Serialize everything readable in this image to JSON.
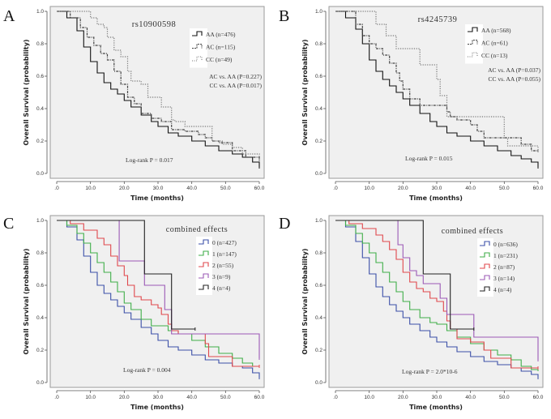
{
  "chart_data": [
    {
      "panel": "A",
      "type": "line",
      "subtype": "kaplan-meier",
      "title": "rs10900598",
      "xlabel": "Time (months)",
      "ylabel": "Overall Survival (probability)",
      "xlim": [
        0,
        60
      ],
      "ylim": [
        0,
        1
      ],
      "xticks": [
        ".0",
        "10.0",
        "20.0",
        "30.0",
        "40.0",
        "50.0",
        "60.0"
      ],
      "yticks": [
        "0.0",
        "0.2",
        "0.4",
        "0.6",
        "0.8",
        "1.0"
      ],
      "grid": false,
      "legend_position": "top-right",
      "annotations": [
        "AC vs. AA (P=0.227)",
        "CC vs. AA (P=0.017)"
      ],
      "logrank": "Log-rank P = 0.017",
      "series": [
        {
          "name": "AA (n=476)",
          "color": "#111111",
          "style": "solid",
          "x": [
            0,
            3,
            6,
            8,
            10,
            12,
            14,
            16,
            18,
            20,
            22,
            25,
            28,
            30,
            33,
            36,
            40,
            44,
            48,
            52,
            55,
            58,
            60
          ],
          "y": [
            1.0,
            0.96,
            0.88,
            0.78,
            0.69,
            0.62,
            0.56,
            0.52,
            0.49,
            0.45,
            0.41,
            0.36,
            0.32,
            0.29,
            0.25,
            0.23,
            0.2,
            0.17,
            0.14,
            0.12,
            0.1,
            0.07,
            0.04
          ]
        },
        {
          "name": "AC (n=115)",
          "color": "#444444",
          "style": "dash-dot",
          "x": [
            0,
            4,
            7,
            9,
            11,
            13,
            15,
            17,
            19,
            21,
            23,
            25,
            28,
            31,
            34,
            38,
            42,
            44,
            46,
            48,
            52,
            56,
            60
          ],
          "y": [
            1.0,
            0.96,
            0.9,
            0.84,
            0.79,
            0.74,
            0.7,
            0.63,
            0.55,
            0.47,
            0.43,
            0.37,
            0.34,
            0.32,
            0.27,
            0.26,
            0.24,
            0.22,
            0.2,
            0.19,
            0.14,
            0.1,
            0.09
          ]
        },
        {
          "name": "CC (n=49)",
          "color": "#777777",
          "style": "dotted",
          "x": [
            0,
            7,
            10,
            12,
            14,
            15,
            17,
            19,
            21,
            22,
            25,
            27,
            31,
            34,
            35,
            38,
            44,
            46,
            49,
            52,
            55,
            58,
            60
          ],
          "y": [
            1.0,
            1.0,
            0.96,
            0.92,
            0.9,
            0.84,
            0.76,
            0.72,
            0.63,
            0.57,
            0.55,
            0.47,
            0.41,
            0.33,
            0.32,
            0.29,
            0.29,
            0.2,
            0.18,
            0.16,
            0.12,
            0.12,
            0.08
          ]
        }
      ]
    },
    {
      "panel": "B",
      "type": "line",
      "subtype": "kaplan-meier",
      "title": "rs4245739",
      "xlabel": "Time (months)",
      "ylabel": "Overall Survival (probability)",
      "xlim": [
        0,
        60
      ],
      "ylim": [
        0,
        1
      ],
      "xticks": [
        ".0",
        "10.0",
        "20.0",
        "30.0",
        "40.0",
        "50.0",
        "60.0"
      ],
      "yticks": [
        "0.0",
        "0.2",
        "0.4",
        "0.6",
        "0.8",
        "1.0"
      ],
      "grid": false,
      "legend_position": "top-right",
      "annotations": [
        "AC vs. AA (P=0.037)",
        "CC vs. AA (P=0.055)"
      ],
      "logrank": "Log-rank P = 0.015",
      "series": [
        {
          "name": "AA (n=568)",
          "color": "#111111",
          "style": "solid",
          "x": [
            0,
            3,
            6,
            8,
            10,
            12,
            14,
            16,
            18,
            20,
            22,
            25,
            28,
            30,
            33,
            36,
            40,
            44,
            48,
            52,
            55,
            58,
            60
          ],
          "y": [
            1.0,
            0.96,
            0.89,
            0.8,
            0.7,
            0.63,
            0.58,
            0.54,
            0.5,
            0.46,
            0.42,
            0.37,
            0.32,
            0.29,
            0.25,
            0.23,
            0.2,
            0.17,
            0.14,
            0.11,
            0.09,
            0.07,
            0.04
          ]
        },
        {
          "name": "AC (n=61)",
          "color": "#444444",
          "style": "dash-dot",
          "x": [
            0,
            6,
            8,
            10,
            12,
            14,
            16,
            18,
            19,
            20,
            22,
            25,
            30,
            33,
            34,
            36,
            40,
            42,
            44,
            50,
            55,
            58,
            60
          ],
          "y": [
            1.0,
            0.92,
            0.85,
            0.8,
            0.77,
            0.73,
            0.68,
            0.62,
            0.57,
            0.52,
            0.46,
            0.42,
            0.42,
            0.38,
            0.35,
            0.33,
            0.3,
            0.26,
            0.22,
            0.22,
            0.18,
            0.14,
            0.14
          ]
        },
        {
          "name": "CC (n=13)",
          "color": "#777777",
          "style": "dotted",
          "x": [
            0,
            12,
            15,
            18,
            21,
            25,
            30,
            31,
            33,
            40,
            50,
            51,
            53,
            60
          ],
          "y": [
            1.0,
            0.92,
            0.85,
            0.77,
            0.77,
            0.67,
            0.58,
            0.48,
            0.35,
            0.35,
            0.22,
            0.17,
            0.17,
            0.14
          ]
        }
      ]
    },
    {
      "panel": "C",
      "type": "line",
      "subtype": "kaplan-meier",
      "title": "combined effects",
      "xlabel": "Time (months)",
      "ylabel": "Overall Survival (probability)",
      "xlim": [
        0,
        60
      ],
      "ylim": [
        0,
        1
      ],
      "xticks": [
        ".0",
        "10.0",
        "20.0",
        "30.0",
        "40.0",
        "50.0",
        "60.0"
      ],
      "yticks": [
        "0.0",
        "0.2",
        "0.4",
        "0.6",
        "0.8",
        "1.0"
      ],
      "grid": false,
      "legend_position": "top-right",
      "annotations": [],
      "logrank": "Log-rank P = 0.004",
      "series": [
        {
          "name": "0 (n=427)",
          "color": "#3b4fa8",
          "style": "solid",
          "x": [
            0,
            3,
            6,
            8,
            10,
            12,
            14,
            16,
            18,
            20,
            22,
            25,
            28,
            30,
            33,
            36,
            40,
            44,
            48,
            52,
            55,
            58,
            60
          ],
          "y": [
            1.0,
            0.96,
            0.88,
            0.78,
            0.68,
            0.6,
            0.55,
            0.51,
            0.47,
            0.43,
            0.39,
            0.34,
            0.3,
            0.26,
            0.22,
            0.2,
            0.17,
            0.14,
            0.12,
            0.1,
            0.09,
            0.06,
            0.03
          ]
        },
        {
          "name": "1 (n=147)",
          "color": "#3fae49",
          "style": "solid",
          "x": [
            0,
            3,
            6,
            8,
            10,
            12,
            14,
            16,
            18,
            20,
            22,
            25,
            28,
            30,
            33,
            36,
            40,
            44,
            48,
            52,
            55,
            58,
            60
          ],
          "y": [
            1.0,
            0.97,
            0.92,
            0.86,
            0.8,
            0.74,
            0.68,
            0.62,
            0.56,
            0.49,
            0.45,
            0.39,
            0.35,
            0.35,
            0.32,
            0.3,
            0.26,
            0.22,
            0.18,
            0.15,
            0.12,
            0.1,
            0.1
          ]
        },
        {
          "name": "2 (n=55)",
          "color": "#e0474c",
          "style": "solid",
          "x": [
            0,
            4,
            8,
            12,
            14,
            16,
            18,
            20,
            21,
            23,
            25,
            28,
            30,
            31,
            33,
            34,
            36,
            40,
            44,
            45,
            50,
            52,
            60
          ],
          "y": [
            1.0,
            0.98,
            0.94,
            0.89,
            0.85,
            0.78,
            0.72,
            0.66,
            0.6,
            0.53,
            0.51,
            0.48,
            0.46,
            0.42,
            0.36,
            0.32,
            0.3,
            0.3,
            0.24,
            0.16,
            0.16,
            0.1,
            0.1
          ]
        },
        {
          "name": "3 (n=9)",
          "color": "#9b59b6",
          "style": "solid",
          "x": [
            0,
            18,
            18.5,
            25,
            26,
            31,
            32,
            34,
            59,
            60
          ],
          "y": [
            1.0,
            1.0,
            0.75,
            0.75,
            0.6,
            0.6,
            0.45,
            0.3,
            0.3,
            0.15
          ]
        },
        {
          "name": "4 (n=4)",
          "color": "#222222",
          "style": "solid",
          "x": [
            0,
            26,
            26,
            34,
            34,
            41
          ],
          "y": [
            1.0,
            1.0,
            0.67,
            0.67,
            0.33,
            0.33
          ]
        }
      ]
    },
    {
      "panel": "D",
      "type": "line",
      "subtype": "kaplan-meier",
      "title": "combined effects",
      "xlabel": "Time (months)",
      "ylabel": "Overall Survival (probability)",
      "xlim": [
        0,
        60
      ],
      "ylim": [
        0,
        1
      ],
      "xticks": [
        ".0",
        "10.0",
        "20.0",
        "30.0",
        "40.0",
        "50.0",
        "60.0"
      ],
      "yticks": [
        "0.0",
        "0.2",
        "0.4",
        "0.6",
        "0.8",
        "1.0"
      ],
      "grid": false,
      "legend_position": "top-right",
      "annotations": [],
      "logrank": "Log-rank P = 2.0*10-6",
      "series": [
        {
          "name": "0 (n=636)",
          "color": "#3b4fa8",
          "style": "solid",
          "x": [
            0,
            3,
            6,
            8,
            10,
            12,
            14,
            16,
            18,
            20,
            22,
            25,
            28,
            30,
            33,
            36,
            40,
            44,
            48,
            52,
            55,
            58,
            60
          ],
          "y": [
            1.0,
            0.96,
            0.87,
            0.77,
            0.67,
            0.59,
            0.53,
            0.48,
            0.44,
            0.4,
            0.36,
            0.32,
            0.28,
            0.25,
            0.22,
            0.19,
            0.16,
            0.13,
            0.11,
            0.09,
            0.07,
            0.05,
            0.03
          ]
        },
        {
          "name": "1 (n=231)",
          "color": "#3fae49",
          "style": "solid",
          "x": [
            0,
            3,
            6,
            8,
            10,
            12,
            14,
            16,
            18,
            20,
            22,
            25,
            28,
            30,
            33,
            36,
            40,
            44,
            48,
            52,
            55,
            58,
            60
          ],
          "y": [
            1.0,
            0.97,
            0.92,
            0.86,
            0.8,
            0.74,
            0.68,
            0.62,
            0.56,
            0.5,
            0.45,
            0.4,
            0.37,
            0.36,
            0.32,
            0.28,
            0.24,
            0.2,
            0.17,
            0.14,
            0.1,
            0.08,
            0.08
          ]
        },
        {
          "name": "2 (n=87)",
          "color": "#e0474c",
          "style": "solid",
          "x": [
            0,
            4,
            8,
            12,
            14,
            16,
            18,
            20,
            22,
            24,
            26,
            28,
            30,
            32,
            33,
            34,
            36,
            40,
            44,
            46,
            50,
            52,
            60
          ],
          "y": [
            1.0,
            0.98,
            0.95,
            0.91,
            0.87,
            0.82,
            0.76,
            0.68,
            0.62,
            0.58,
            0.56,
            0.52,
            0.5,
            0.44,
            0.38,
            0.33,
            0.27,
            0.25,
            0.2,
            0.15,
            0.15,
            0.09,
            0.09
          ]
        },
        {
          "name": "3 (n=14)",
          "color": "#9b59b6",
          "style": "solid",
          "x": [
            0,
            18,
            18.5,
            20,
            22,
            24,
            26,
            31,
            33,
            34,
            41,
            59,
            60
          ],
          "y": [
            1.0,
            1.0,
            0.85,
            0.77,
            0.69,
            0.66,
            0.61,
            0.52,
            0.42,
            0.42,
            0.28,
            0.28,
            0.14
          ]
        },
        {
          "name": "4 (n=4)",
          "color": "#222222",
          "style": "solid",
          "x": [
            0,
            26,
            26,
            34,
            34,
            41
          ],
          "y": [
            1.0,
            1.0,
            0.67,
            0.67,
            0.33,
            0.33
          ]
        }
      ]
    }
  ]
}
